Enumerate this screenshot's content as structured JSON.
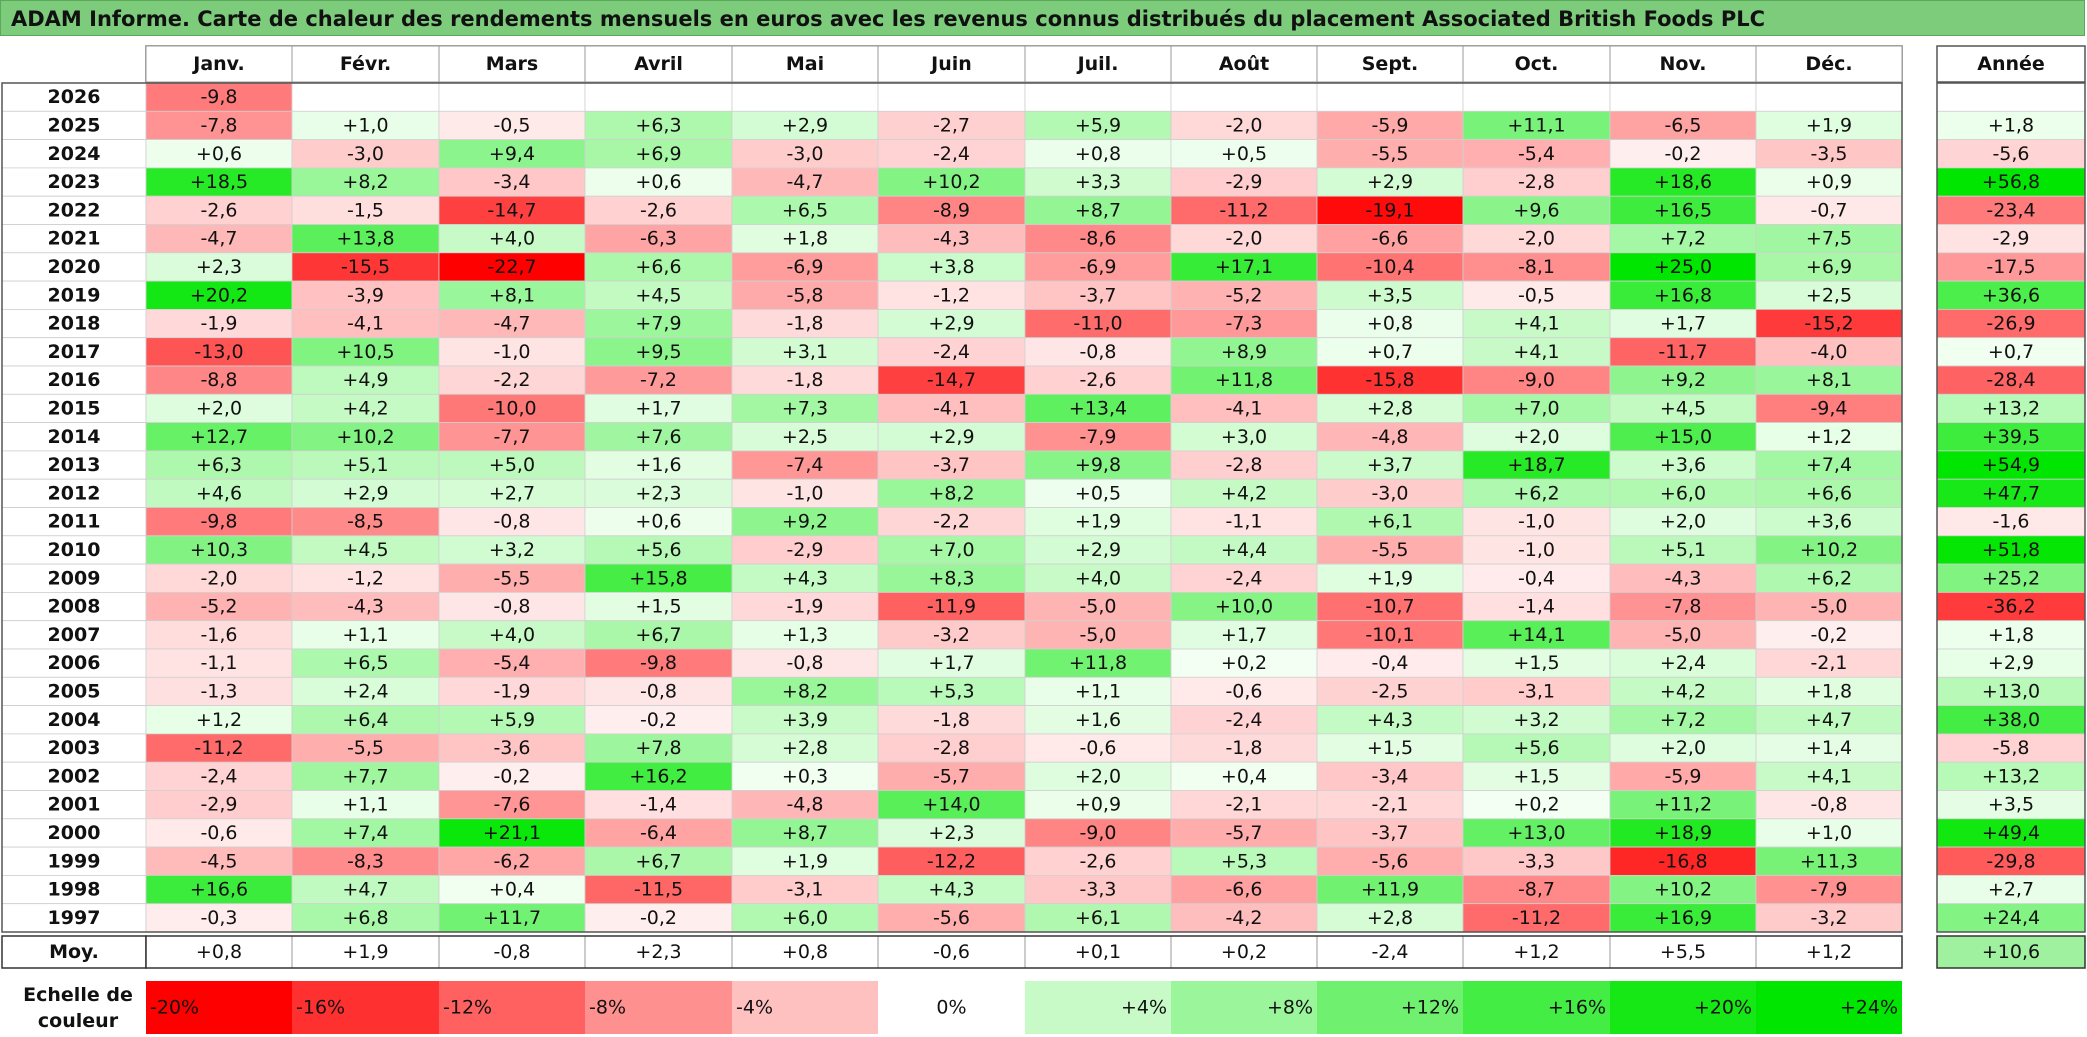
{
  "title": "ADAM Informe. Carte de chaleur des rendements mensuels en euros avec les revenus connus distribués du placement Associated British Foods PLC",
  "chart_data": {
    "type": "heatmap",
    "columns": [
      "Janv.",
      "Févr.",
      "Mars",
      "Avril",
      "Mai",
      "Juin",
      "Juil.",
      "Août",
      "Sept.",
      "Oct.",
      "Nov.",
      "Déc."
    ],
    "annual_header": "Année",
    "rows": [
      {
        "year": "2026",
        "months": [
          "-9,8",
          "",
          "",
          "",
          "",
          "",
          "",
          "",
          "",
          "",
          "",
          ""
        ],
        "annual": ""
      },
      {
        "year": "2025",
        "months": [
          "-7,8",
          "+1,0",
          "-0,5",
          "+6,3",
          "+2,9",
          "-2,7",
          "+5,9",
          "-2,0",
          "-5,9",
          "+11,1",
          "-6,5",
          "+1,9"
        ],
        "annual": "+1,8"
      },
      {
        "year": "2024",
        "months": [
          "+0,6",
          "-3,0",
          "+9,4",
          "+6,9",
          "-3,0",
          "-2,4",
          "+0,8",
          "+0,5",
          "-5,5",
          "-5,4",
          "-0,2",
          "-3,5"
        ],
        "annual": "-5,6"
      },
      {
        "year": "2023",
        "months": [
          "+18,5",
          "+8,2",
          "-3,4",
          "+0,6",
          "-4,7",
          "+10,2",
          "+3,3",
          "-2,9",
          "+2,9",
          "-2,8",
          "+18,6",
          "+0,9"
        ],
        "annual": "+56,8"
      },
      {
        "year": "2022",
        "months": [
          "-2,6",
          "-1,5",
          "-14,7",
          "-2,6",
          "+6,5",
          "-8,9",
          "+8,7",
          "-11,2",
          "-19,1",
          "+9,6",
          "+16,5",
          "-0,7"
        ],
        "annual": "-23,4"
      },
      {
        "year": "2021",
        "months": [
          "-4,7",
          "+13,8",
          "+4,0",
          "-6,3",
          "+1,8",
          "-4,3",
          "-8,6",
          "-2,0",
          "-6,6",
          "-2,0",
          "+7,2",
          "+7,5"
        ],
        "annual": "-2,9"
      },
      {
        "year": "2020",
        "months": [
          "+2,3",
          "-15,5",
          "-22,7",
          "+6,6",
          "-6,9",
          "+3,8",
          "-6,9",
          "+17,1",
          "-10,4",
          "-8,1",
          "+25,0",
          "+6,9"
        ],
        "annual": "-17,5"
      },
      {
        "year": "2019",
        "months": [
          "+20,2",
          "-3,9",
          "+8,1",
          "+4,5",
          "-5,8",
          "-1,2",
          "-3,7",
          "-5,2",
          "+3,5",
          "-0,5",
          "+16,8",
          "+2,5"
        ],
        "annual": "+36,6"
      },
      {
        "year": "2018",
        "months": [
          "-1,9",
          "-4,1",
          "-4,7",
          "+7,9",
          "-1,8",
          "+2,9",
          "-11,0",
          "-7,3",
          "+0,8",
          "+4,1",
          "+1,7",
          "-15,2"
        ],
        "annual": "-26,9"
      },
      {
        "year": "2017",
        "months": [
          "-13,0",
          "+10,5",
          "-1,0",
          "+9,5",
          "+3,1",
          "-2,4",
          "-0,8",
          "+8,9",
          "+0,7",
          "+4,1",
          "-11,7",
          "-4,0"
        ],
        "annual": "+0,7"
      },
      {
        "year": "2016",
        "months": [
          "-8,8",
          "+4,9",
          "-2,2",
          "-7,2",
          "-1,8",
          "-14,7",
          "-2,6",
          "+11,8",
          "-15,8",
          "-9,0",
          "+9,2",
          "+8,1"
        ],
        "annual": "-28,4"
      },
      {
        "year": "2015",
        "months": [
          "+2,0",
          "+4,2",
          "-10,0",
          "+1,7",
          "+7,3",
          "-4,1",
          "+13,4",
          "-4,1",
          "+2,8",
          "+7,0",
          "+4,5",
          "-9,4"
        ],
        "annual": "+13,2"
      },
      {
        "year": "2014",
        "months": [
          "+12,7",
          "+10,2",
          "-7,7",
          "+7,6",
          "+2,5",
          "+2,9",
          "-7,9",
          "+3,0",
          "-4,8",
          "+2,0",
          "+15,0",
          "+1,2"
        ],
        "annual": "+39,5"
      },
      {
        "year": "2013",
        "months": [
          "+6,3",
          "+5,1",
          "+5,0",
          "+1,6",
          "-7,4",
          "-3,7",
          "+9,8",
          "-2,8",
          "+3,7",
          "+18,7",
          "+3,6",
          "+7,4"
        ],
        "annual": "+54,9"
      },
      {
        "year": "2012",
        "months": [
          "+4,6",
          "+2,9",
          "+2,7",
          "+2,3",
          "-1,0",
          "+8,2",
          "+0,5",
          "+4,2",
          "-3,0",
          "+6,2",
          "+6,0",
          "+6,6"
        ],
        "annual": "+47,7"
      },
      {
        "year": "2011",
        "months": [
          "-9,8",
          "-8,5",
          "-0,8",
          "+0,6",
          "+9,2",
          "-2,2",
          "+1,9",
          "-1,1",
          "+6,1",
          "-1,0",
          "+2,0",
          "+3,6"
        ],
        "annual": "-1,6"
      },
      {
        "year": "2010",
        "months": [
          "+10,3",
          "+4,5",
          "+3,2",
          "+5,6",
          "-2,9",
          "+7,0",
          "+2,9",
          "+4,4",
          "-5,5",
          "-1,0",
          "+5,1",
          "+10,2"
        ],
        "annual": "+51,8"
      },
      {
        "year": "2009",
        "months": [
          "-2,0",
          "-1,2",
          "-5,5",
          "+15,8",
          "+4,3",
          "+8,3",
          "+4,0",
          "-2,4",
          "+1,9",
          "-0,4",
          "-4,3",
          "+6,2"
        ],
        "annual": "+25,2"
      },
      {
        "year": "2008",
        "months": [
          "-5,2",
          "-4,3",
          "-0,8",
          "+1,5",
          "-1,9",
          "-11,9",
          "-5,0",
          "+10,0",
          "-10,7",
          "-1,4",
          "-7,8",
          "-5,0"
        ],
        "annual": "-36,2"
      },
      {
        "year": "2007",
        "months": [
          "-1,6",
          "+1,1",
          "+4,0",
          "+6,7",
          "+1,3",
          "-3,2",
          "-5,0",
          "+1,7",
          "-10,1",
          "+14,1",
          "-5,0",
          "-0,2"
        ],
        "annual": "+1,8"
      },
      {
        "year": "2006",
        "months": [
          "-1,1",
          "+6,5",
          "-5,4",
          "-9,8",
          "-0,8",
          "+1,7",
          "+11,8",
          "+0,2",
          "-0,4",
          "+1,5",
          "+2,4",
          "-2,1"
        ],
        "annual": "+2,9"
      },
      {
        "year": "2005",
        "months": [
          "-1,3",
          "+2,4",
          "-1,9",
          "-0,8",
          "+8,2",
          "+5,3",
          "+1,1",
          "-0,6",
          "-2,5",
          "-3,1",
          "+4,2",
          "+1,8"
        ],
        "annual": "+13,0"
      },
      {
        "year": "2004",
        "months": [
          "+1,2",
          "+6,4",
          "+5,9",
          "-0,2",
          "+3,9",
          "-1,8",
          "+1,6",
          "-2,4",
          "+4,3",
          "+3,2",
          "+7,2",
          "+4,7"
        ],
        "annual": "+38,0"
      },
      {
        "year": "2003",
        "months": [
          "-11,2",
          "-5,5",
          "-3,6",
          "+7,8",
          "+2,8",
          "-2,8",
          "-0,6",
          "-1,8",
          "+1,5",
          "+5,6",
          "+2,0",
          "+1,4"
        ],
        "annual": "-5,8"
      },
      {
        "year": "2002",
        "months": [
          "-2,4",
          "+7,7",
          "-0,2",
          "+16,2",
          "+0,3",
          "-5,7",
          "+2,0",
          "+0,4",
          "-3,4",
          "+1,5",
          "-5,9",
          "+4,1"
        ],
        "annual": "+13,2"
      },
      {
        "year": "2001",
        "months": [
          "-2,9",
          "+1,1",
          "-7,6",
          "-1,4",
          "-4,8",
          "+14,0",
          "+0,9",
          "-2,1",
          "-2,1",
          "+0,2",
          "+11,2",
          "-0,8"
        ],
        "annual": "+3,5"
      },
      {
        "year": "2000",
        "months": [
          "-0,6",
          "+7,4",
          "+21,1",
          "-6,4",
          "+8,7",
          "+2,3",
          "-9,0",
          "-5,7",
          "-3,7",
          "+13,0",
          "+18,9",
          "+1,0"
        ],
        "annual": "+49,4"
      },
      {
        "year": "1999",
        "months": [
          "-4,5",
          "-8,3",
          "-6,2",
          "+6,7",
          "+1,9",
          "-12,2",
          "-2,6",
          "+5,3",
          "-5,6",
          "-3,3",
          "-16,8",
          "+11,3"
        ],
        "annual": "-29,8"
      },
      {
        "year": "1998",
        "months": [
          "+16,6",
          "+4,7",
          "+0,4",
          "-11,5",
          "-3,1",
          "+4,3",
          "-3,3",
          "-6,6",
          "+11,9",
          "-8,7",
          "+10,2",
          "-7,9"
        ],
        "annual": "+2,7"
      },
      {
        "year": "1997",
        "months": [
          "-0,3",
          "+6,8",
          "+11,7",
          "-0,2",
          "+6,0",
          "-5,6",
          "+6,1",
          "-4,2",
          "+2,8",
          "-11,2",
          "+16,9",
          "-3,2"
        ],
        "annual": "+24,4"
      }
    ],
    "average": {
      "label": "Moy.",
      "months": [
        "+0,8",
        "+1,9",
        "-0,8",
        "+2,3",
        "+0,8",
        "-0,6",
        "+0,1",
        "+0,2",
        "-2,4",
        "+1,2",
        "+5,5",
        "+1,2"
      ],
      "annual": "+10,6"
    },
    "scale": {
      "label_line1": "Echelle de",
      "label_line2": "couleur",
      "steps": [
        "-20%",
        "-16%",
        "-12%",
        "-8%",
        "-4%",
        "0%",
        "+4%",
        "+8%",
        "+12%",
        "+16%",
        "+20%",
        "+24%"
      ]
    },
    "colors": {
      "negative_max": "#ff0000",
      "positive_max": "#00e600",
      "neutral": "#ffffff"
    }
  }
}
